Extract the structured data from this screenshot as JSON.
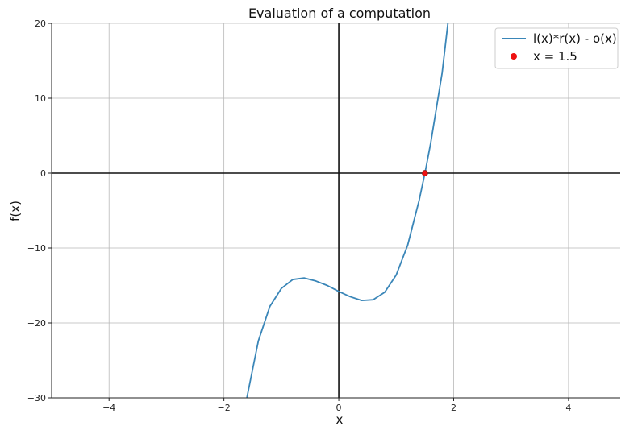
{
  "chart_data": {
    "type": "line",
    "title": "Evaluation of a computation",
    "xlabel": "x",
    "ylabel": "f(x)",
    "xlim": [
      -5,
      4.9
    ],
    "ylim": [
      -30,
      20
    ],
    "x_ticks": [
      -4,
      -2,
      0,
      2,
      4
    ],
    "y_ticks": [
      -30,
      -20,
      -10,
      0,
      10,
      20
    ],
    "x_tick_labels": [
      "−4",
      "−2",
      "0",
      "2",
      "4"
    ],
    "y_tick_labels": [
      "−30",
      "−20",
      "−10",
      "0",
      "10",
      "20"
    ],
    "grid": true,
    "legend_position": "top-right",
    "series": [
      {
        "name": "l(x)*r(x) - o(x)",
        "color": "#3a86b8",
        "x": [
          -1.6,
          -1.4,
          -1.2,
          -1.0,
          -0.8,
          -0.6,
          -0.4,
          -0.2,
          0.0,
          0.2,
          0.4,
          0.6,
          0.8,
          1.0,
          1.2,
          1.4,
          1.5,
          1.6,
          1.8,
          1.9
        ],
        "y": [
          -30.0,
          -22.4,
          -17.8,
          -15.4,
          -14.2,
          -14.0,
          -14.4,
          -15.0,
          -15.8,
          -16.5,
          -17.0,
          -16.9,
          -15.9,
          -13.6,
          -9.6,
          -3.6,
          0.0,
          4.0,
          13.4,
          20.0
        ]
      }
    ],
    "points": [
      {
        "name": "x = 1.5",
        "x": 1.5,
        "y": 0,
        "color": "#ee1111"
      }
    ],
    "reference_lines": {
      "x": 0,
      "y": 0,
      "color": "#111111"
    }
  }
}
